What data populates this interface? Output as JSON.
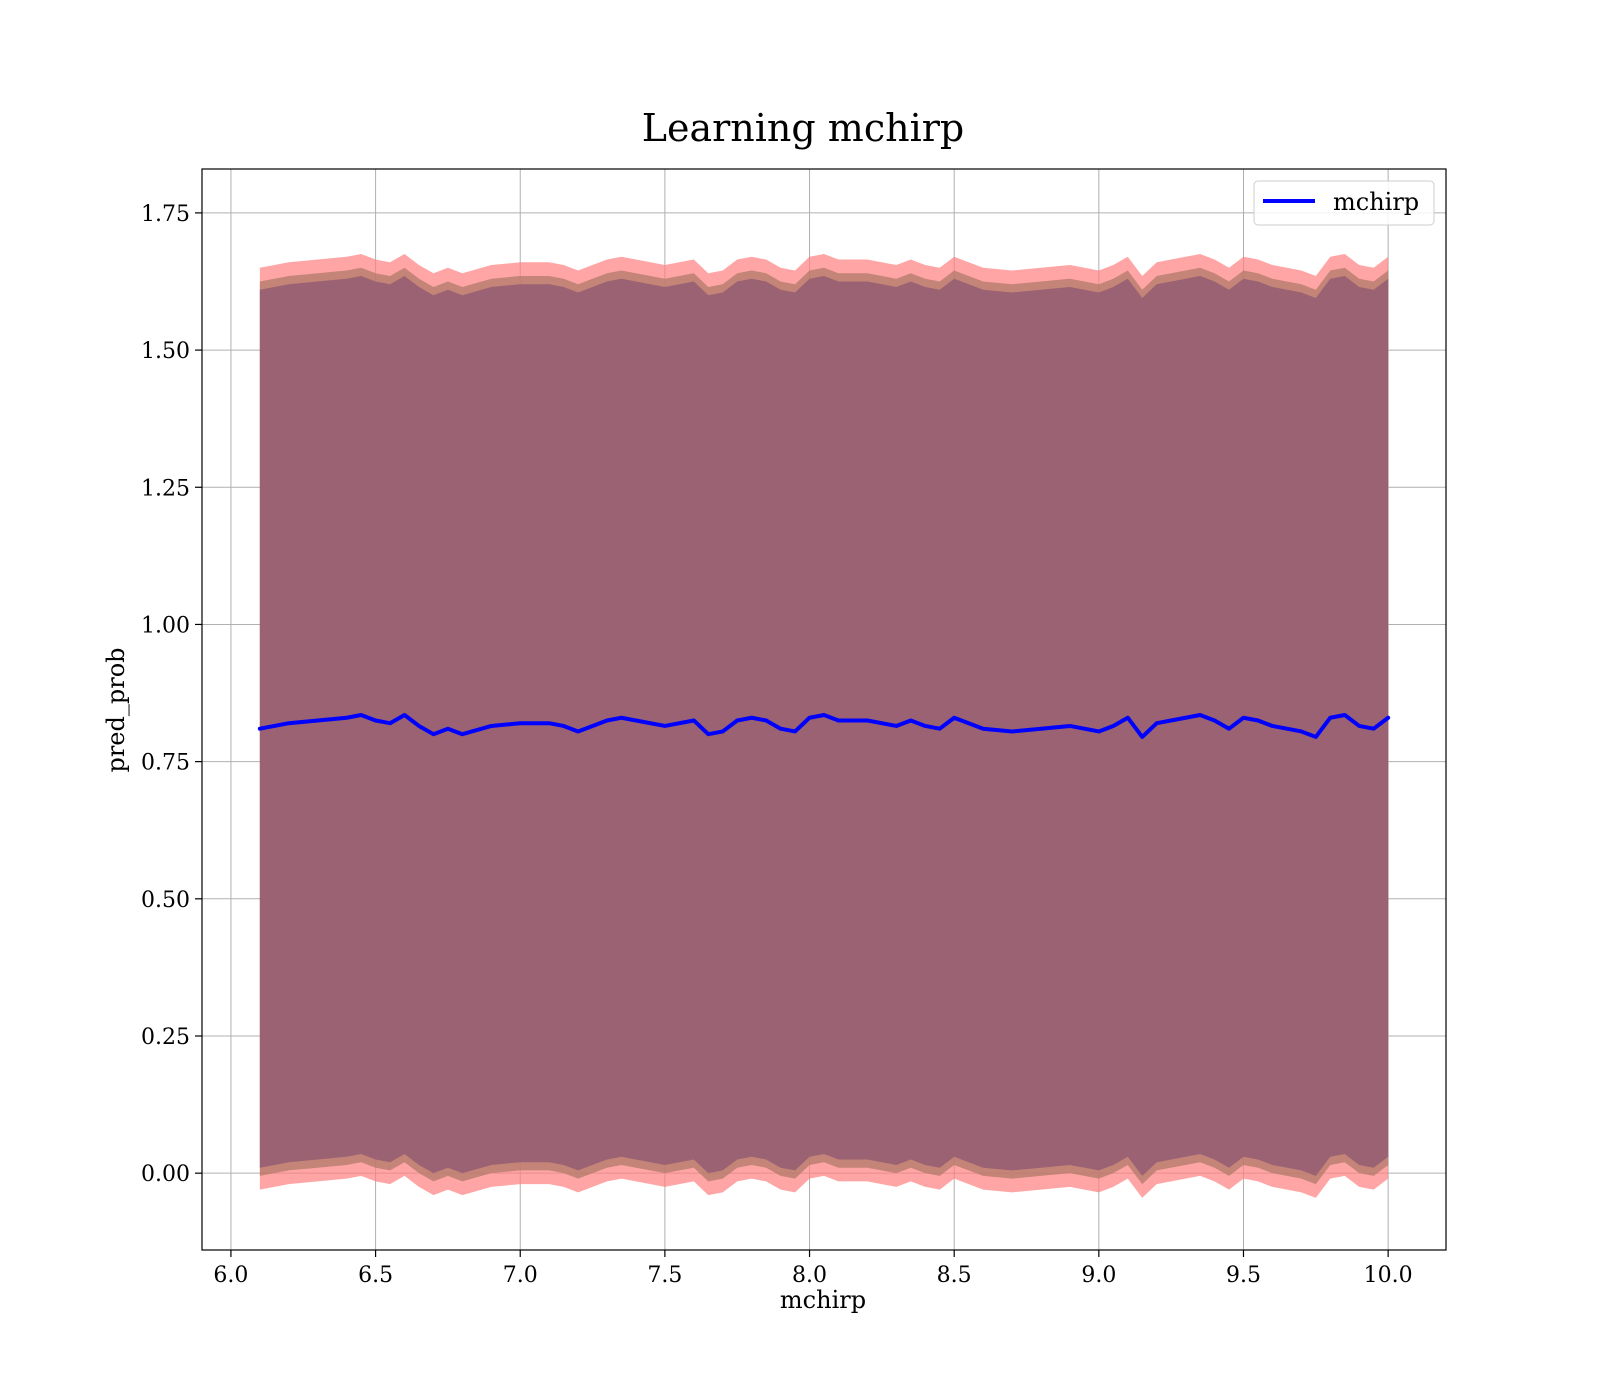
{
  "chart_data": {
    "type": "line",
    "title": "Learning mchirp",
    "xlabel": "mchirp",
    "ylabel": "pred_prob",
    "xlim": [
      5.9,
      10.2
    ],
    "ylim": [
      -0.14,
      1.83
    ],
    "xticks": [
      "6.0",
      "6.5",
      "7.0",
      "7.5",
      "8.0",
      "8.5",
      "9.0",
      "9.5",
      "10.0"
    ],
    "yticks": [
      "0.00",
      "0.25",
      "0.50",
      "0.75",
      "1.00",
      "1.25",
      "1.50",
      "1.75"
    ],
    "grid": true,
    "legend": {
      "position": "top-right",
      "entries": [
        "mchirp"
      ]
    },
    "series": [
      {
        "name": "mchirp",
        "color": "#0000ff",
        "x": [
          6.1,
          6.2,
          6.3,
          6.4,
          6.45,
          6.5,
          6.55,
          6.6,
          6.65,
          6.7,
          6.75,
          6.8,
          6.9,
          7.0,
          7.1,
          7.15,
          7.2,
          7.3,
          7.35,
          7.4,
          7.5,
          7.6,
          7.65,
          7.7,
          7.75,
          7.8,
          7.85,
          7.9,
          7.95,
          8.0,
          8.05,
          8.1,
          8.2,
          8.3,
          8.35,
          8.4,
          8.45,
          8.5,
          8.55,
          8.6,
          8.7,
          8.8,
          8.9,
          9.0,
          9.05,
          9.1,
          9.15,
          9.2,
          9.3,
          9.35,
          9.4,
          9.45,
          9.5,
          9.55,
          9.6,
          9.7,
          9.75,
          9.8,
          9.85,
          9.9,
          9.95,
          10.0
        ],
        "y": [
          0.81,
          0.82,
          0.825,
          0.83,
          0.835,
          0.825,
          0.82,
          0.835,
          0.815,
          0.8,
          0.81,
          0.8,
          0.815,
          0.82,
          0.82,
          0.815,
          0.805,
          0.825,
          0.83,
          0.825,
          0.815,
          0.825,
          0.8,
          0.805,
          0.825,
          0.83,
          0.825,
          0.81,
          0.805,
          0.83,
          0.835,
          0.825,
          0.825,
          0.815,
          0.825,
          0.815,
          0.81,
          0.83,
          0.82,
          0.81,
          0.805,
          0.81,
          0.815,
          0.805,
          0.815,
          0.83,
          0.795,
          0.82,
          0.83,
          0.835,
          0.825,
          0.81,
          0.83,
          0.825,
          0.815,
          0.805,
          0.795,
          0.83,
          0.835,
          0.815,
          0.81,
          0.83
        ]
      }
    ],
    "bands": [
      {
        "name": "outer",
        "color": "#ff7f7f",
        "opacity": 0.7,
        "offset": 0.84
      },
      {
        "name": "middle",
        "color": "#b07a6a",
        "opacity": 0.75,
        "offset": 0.815
      },
      {
        "name": "inner",
        "color": "#9a6272",
        "opacity": 1.0,
        "offset": 0.8
      }
    ],
    "colors": {
      "line": "#0000ff",
      "grid": "#b0b0b0"
    }
  }
}
